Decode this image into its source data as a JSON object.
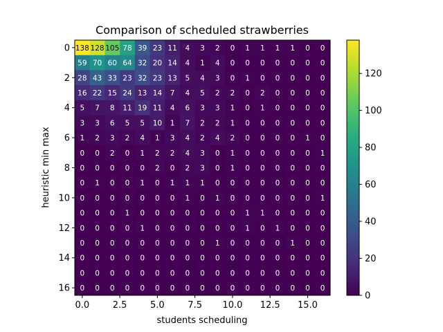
{
  "chart_data": {
    "type": "heatmap",
    "title": "Comparison of scheduled strawberries",
    "xlabel": "students scheduling",
    "ylabel": "heuristic min max",
    "x_ticks": [
      "0.0",
      "2.5",
      "5.0",
      "7.5",
      "10.0",
      "12.5",
      "15.0"
    ],
    "y_ticks": [
      "0",
      "2",
      "4",
      "6",
      "8",
      "10",
      "12",
      "14",
      "16"
    ],
    "colorbar_ticks": [
      "0",
      "20",
      "40",
      "60",
      "80",
      "100",
      "120"
    ],
    "vmin": 0,
    "vmax": 138,
    "colormap": "viridis",
    "values": [
      [
        138,
        128,
        105,
        78,
        39,
        23,
        11,
        4,
        3,
        2,
        0,
        1,
        1,
        1,
        1,
        0,
        0
      ],
      [
        59,
        70,
        60,
        64,
        32,
        20,
        14,
        4,
        1,
        4,
        0,
        0,
        0,
        0,
        0,
        0,
        0
      ],
      [
        28,
        43,
        33,
        23,
        32,
        23,
        13,
        5,
        4,
        3,
        0,
        1,
        0,
        0,
        0,
        0,
        0
      ],
      [
        16,
        22,
        15,
        24,
        13,
        14,
        7,
        4,
        5,
        2,
        2,
        0,
        2,
        0,
        0,
        0,
        0
      ],
      [
        5,
        7,
        8,
        11,
        19,
        11,
        4,
        6,
        3,
        3,
        1,
        0,
        1,
        0,
        0,
        0,
        0
      ],
      [
        3,
        3,
        6,
        5,
        5,
        10,
        1,
        7,
        2,
        2,
        1,
        0,
        0,
        0,
        0,
        0,
        0
      ],
      [
        1,
        2,
        3,
        2,
        4,
        1,
        3,
        4,
        2,
        4,
        2,
        0,
        0,
        0,
        0,
        1,
        0
      ],
      [
        0,
        0,
        2,
        0,
        1,
        2,
        2,
        4,
        3,
        0,
        1,
        0,
        0,
        0,
        0,
        0,
        1
      ],
      [
        0,
        0,
        0,
        0,
        0,
        2,
        0,
        2,
        3,
        0,
        1,
        0,
        0,
        0,
        0,
        0,
        0
      ],
      [
        0,
        1,
        0,
        0,
        1,
        0,
        1,
        1,
        1,
        0,
        0,
        0,
        0,
        0,
        0,
        0,
        0
      ],
      [
        0,
        0,
        0,
        0,
        0,
        0,
        0,
        1,
        0,
        1,
        0,
        0,
        0,
        0,
        0,
        0,
        1
      ],
      [
        0,
        0,
        0,
        1,
        0,
        0,
        0,
        0,
        0,
        0,
        0,
        1,
        1,
        0,
        0,
        0,
        0
      ],
      [
        0,
        0,
        0,
        0,
        1,
        0,
        0,
        0,
        0,
        0,
        0,
        1,
        0,
        1,
        0,
        0,
        0
      ],
      [
        0,
        0,
        0,
        0,
        0,
        0,
        0,
        0,
        0,
        1,
        0,
        0,
        0,
        0,
        1,
        0,
        0
      ],
      [
        0,
        0,
        0,
        0,
        0,
        0,
        0,
        0,
        0,
        0,
        0,
        0,
        0,
        0,
        0,
        0,
        0
      ],
      [
        0,
        0,
        0,
        0,
        0,
        0,
        0,
        0,
        0,
        0,
        0,
        0,
        0,
        0,
        0,
        0,
        0
      ],
      [
        0,
        0,
        0,
        0,
        0,
        0,
        0,
        0,
        0,
        0,
        0,
        0,
        0,
        0,
        0,
        0,
        0
      ]
    ]
  }
}
